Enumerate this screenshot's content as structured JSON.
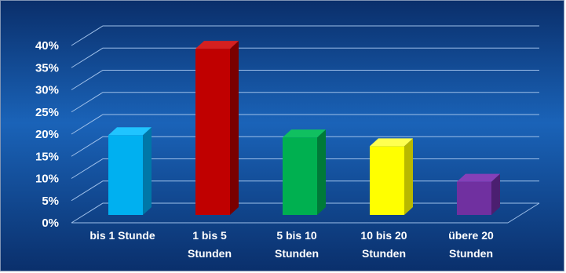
{
  "chart_data": {
    "type": "bar",
    "style": "3d-columns",
    "categories": [
      [
        "bis 1 Stunde"
      ],
      [
        "1 bis 5",
        "Stunden"
      ],
      [
        "5 bis 10",
        "Stunden"
      ],
      [
        "10 bis 20",
        "Stunden"
      ],
      [
        "übere 20",
        "Stunden"
      ]
    ],
    "values": [
      18,
      37.5,
      17.5,
      15.5,
      7.5
    ],
    "value_unit": "%",
    "yticks": [
      "0%",
      "5%",
      "10%",
      "15%",
      "20%",
      "25%",
      "30%",
      "35%",
      "40%"
    ],
    "ylim": [
      0,
      40
    ],
    "grid": true,
    "legend": "none",
    "colors": {
      "background_top": "#0a2f6b",
      "background_mid": "#1a63b8",
      "background_bottom": "#0a2f6b",
      "gridline": "#9fc0ea",
      "bars": [
        "#00b0f0",
        "#c00000",
        "#00b050",
        "#ffff00",
        "#7030a0"
      ],
      "bar_sides": [
        "#0077a8",
        "#7a0000",
        "#007a38",
        "#b8b800",
        "#4b1f70"
      ],
      "bar_tops": [
        "#20c4ff",
        "#d42020",
        "#10c060",
        "#ffff50",
        "#8540b8"
      ]
    }
  }
}
